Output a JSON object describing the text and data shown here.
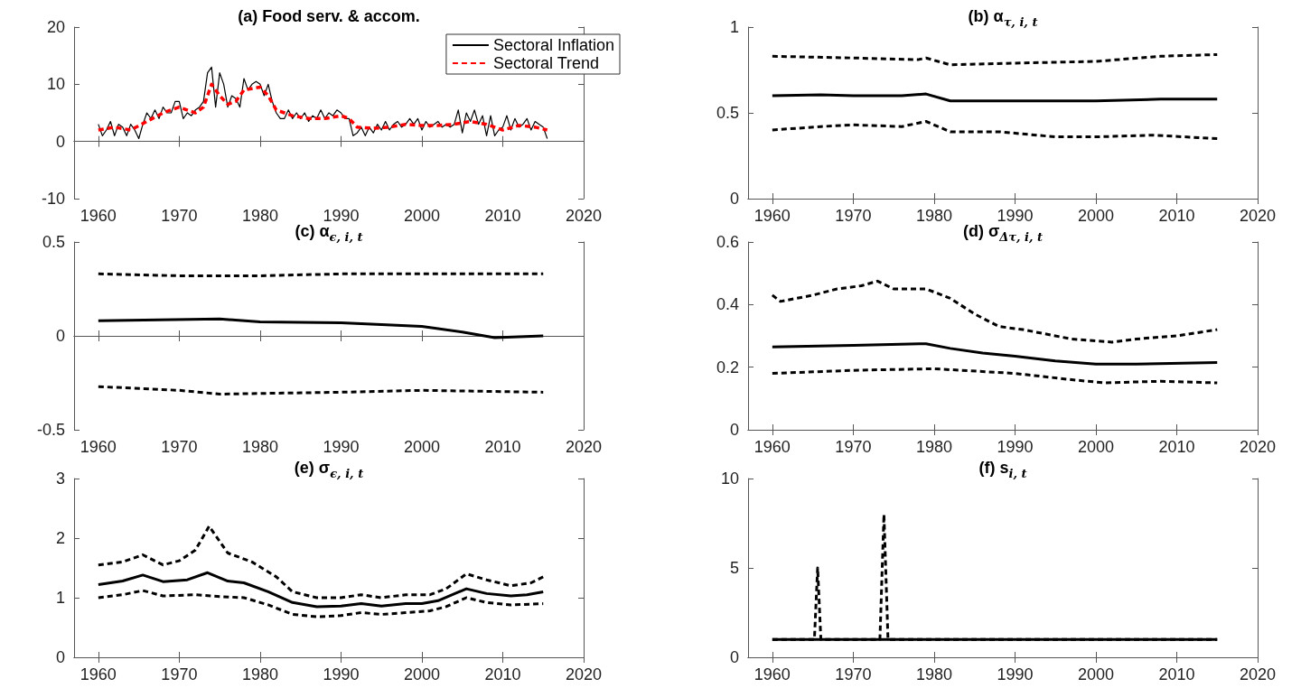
{
  "chart_data": [
    {
      "type": "line",
      "title": "(a) Food serv. & accom.",
      "xlim": [
        1957,
        2020
      ],
      "xticks": [
        1960,
        1970,
        1980,
        1990,
        2000,
        2010,
        2020
      ],
      "ylim": [
        -10,
        20
      ],
      "yticks": [
        -10,
        0,
        10,
        20
      ],
      "legend": "top right",
      "series": [
        {
          "name": "Sectoral Inflation",
          "color": "#000000",
          "line_style": "solid",
          "x": [
            1960,
            1960.5,
            1961,
            1961.5,
            1962,
            1962.5,
            1963,
            1963.5,
            1964,
            1964.5,
            1965,
            1965.5,
            1966,
            1966.5,
            1967,
            1967.5,
            1968,
            1968.5,
            1969,
            1969.5,
            1970,
            1970.5,
            1971,
            1971.5,
            1972,
            1972.5,
            1973,
            1973.5,
            1974,
            1974.5,
            1975,
            1975.5,
            1976,
            1976.5,
            1977,
            1977.5,
            1978,
            1978.5,
            1979,
            1979.5,
            1980,
            1980.5,
            1981,
            1981.5,
            1982,
            1982.5,
            1983,
            1983.5,
            1984,
            1984.5,
            1985,
            1985.5,
            1986,
            1986.5,
            1987,
            1987.5,
            1988,
            1988.5,
            1989,
            1989.5,
            1990,
            1990.5,
            1991,
            1991.5,
            1992,
            1992.5,
            1993,
            1993.5,
            1994,
            1994.5,
            1995,
            1995.5,
            1996,
            1996.5,
            1997,
            1997.5,
            1998,
            1998.5,
            1999,
            1999.5,
            2000,
            2000.5,
            2001,
            2001.5,
            2002,
            2002.5,
            2003,
            2003.5,
            2004,
            2004.5,
            2005,
            2005.5,
            2006,
            2006.5,
            2007,
            2007.5,
            2008,
            2008.5,
            2009,
            2009.5,
            2010,
            2010.5,
            2011,
            2011.5,
            2012,
            2012.5,
            2013,
            2013.5,
            2014,
            2014.5,
            2015,
            2015.5
          ],
          "values": [
            3,
            1,
            2,
            3.5,
            1,
            3,
            2.5,
            1,
            3,
            2,
            0.5,
            3,
            5,
            4,
            5.5,
            4,
            6,
            5,
            5,
            7,
            7,
            4,
            5,
            4.5,
            5.5,
            6,
            7,
            12,
            13,
            6,
            12,
            10,
            6,
            8,
            7.5,
            6,
            11,
            9,
            10,
            10.5,
            10,
            8,
            10,
            7,
            5,
            4,
            4,
            5.5,
            4,
            5,
            4,
            5,
            3.5,
            4.5,
            4,
            5.5,
            4,
            5,
            4.5,
            5.5,
            5,
            4,
            4,
            1,
            1.5,
            2.5,
            1,
            2.5,
            1.5,
            3,
            2,
            3.5,
            2,
            3,
            3.5,
            2.5,
            3,
            4,
            3,
            4,
            2,
            3.5,
            2.5,
            3,
            3.5,
            2.5,
            3,
            2.5,
            3,
            5.5,
            1.5,
            5,
            3.5,
            5.5,
            3,
            4.5,
            1,
            4.5,
            1,
            2,
            2.5,
            4.5,
            2,
            4,
            2.5,
            3,
            4,
            2,
            3.5,
            3,
            2.5,
            0.5
          ]
        },
        {
          "name": "Sectoral Trend",
          "color": "#ff0000",
          "line_style": "dashed",
          "x": [
            1960,
            1962,
            1964,
            1966,
            1968,
            1970,
            1972,
            1973,
            1974,
            1975,
            1976,
            1977,
            1978,
            1980,
            1981,
            1982,
            1984,
            1986,
            1988,
            1990,
            1991,
            1992,
            1994,
            1996,
            1998,
            2000,
            2002,
            2004,
            2006,
            2008,
            2010,
            2012,
            2014,
            2015.5
          ],
          "values": [
            2,
            2.5,
            2,
            3.5,
            5,
            6,
            5,
            6,
            10,
            8,
            6.5,
            7,
            9,
            9.5,
            8,
            5.5,
            4.5,
            4,
            4,
            4.5,
            4,
            2.5,
            2.3,
            2.5,
            3,
            2.8,
            2.8,
            3,
            3.5,
            3,
            2,
            2.8,
            2.5,
            2
          ]
        }
      ]
    },
    {
      "type": "line",
      "title": "(b) α$_{τ, i, t}$",
      "xlim": [
        1957,
        2020
      ],
      "xticks": [
        1960,
        1970,
        1980,
        1990,
        2000,
        2010,
        2020
      ],
      "ylim": [
        0,
        1
      ],
      "yticks": [
        0,
        0.5,
        1
      ],
      "series": [
        {
          "color": "#000000",
          "line_style": "solid",
          "x": [
            1960,
            1966,
            1970,
            1976,
            1979,
            1982,
            1990,
            2000,
            2008,
            2015
          ],
          "values": [
            0.6,
            0.605,
            0.6,
            0.6,
            0.61,
            0.57,
            0.57,
            0.57,
            0.58,
            0.58
          ]
        },
        {
          "color": "#000000",
          "line_style": "dashed",
          "x": [
            1960,
            1970,
            1978,
            1979,
            1982,
            1990,
            2000,
            2008,
            2015
          ],
          "values": [
            0.83,
            0.82,
            0.81,
            0.82,
            0.78,
            0.79,
            0.8,
            0.83,
            0.84
          ]
        },
        {
          "color": "#000000",
          "line_style": "dashed",
          "x": [
            1960,
            1966,
            1970,
            1976,
            1979,
            1982,
            1988,
            1995,
            2000,
            2007,
            2015
          ],
          "values": [
            0.4,
            0.42,
            0.43,
            0.42,
            0.45,
            0.39,
            0.39,
            0.36,
            0.36,
            0.37,
            0.35
          ]
        }
      ]
    },
    {
      "type": "line",
      "title": "(c) α$_{ϵ, i, t}$",
      "xlim": [
        1957,
        2020
      ],
      "xticks": [
        1960,
        1970,
        1980,
        1990,
        2000,
        2010,
        2020
      ],
      "ylim": [
        -0.5,
        0.5
      ],
      "yticks": [
        -0.5,
        0,
        0.5
      ],
      "series": [
        {
          "color": "#000000",
          "line_style": "solid",
          "x": [
            1960,
            1975,
            1980,
            1990,
            2000,
            2005,
            2009,
            2015
          ],
          "values": [
            0.08,
            0.09,
            0.075,
            0.07,
            0.05,
            0.02,
            -0.01,
            0
          ]
        },
        {
          "color": "#000000",
          "line_style": "dashed",
          "x": [
            1960,
            1970,
            1980,
            1990,
            2015
          ],
          "values": [
            0.33,
            0.32,
            0.32,
            0.33,
            0.33
          ]
        },
        {
          "color": "#000000",
          "line_style": "dashed",
          "x": [
            1960,
            1970,
            1975,
            1990,
            2000,
            2015
          ],
          "values": [
            -0.27,
            -0.29,
            -0.31,
            -0.3,
            -0.29,
            -0.3
          ]
        }
      ]
    },
    {
      "type": "line",
      "title": "(d) σ$_{Δτ, i, t}$",
      "xlim": [
        1957,
        2020
      ],
      "xticks": [
        1960,
        1970,
        1980,
        1990,
        2000,
        2010,
        2020
      ],
      "ylim": [
        0,
        0.6
      ],
      "yticks": [
        0,
        0.2,
        0.4,
        0.6
      ],
      "series": [
        {
          "color": "#000000",
          "line_style": "solid",
          "x": [
            1960,
            1970,
            1979,
            1982,
            1986,
            1990,
            1995,
            2000,
            2005,
            2015
          ],
          "values": [
            0.265,
            0.27,
            0.275,
            0.26,
            0.245,
            0.235,
            0.22,
            0.21,
            0.21,
            0.215
          ]
        },
        {
          "color": "#000000",
          "line_style": "dashed",
          "x": [
            1960,
            1961,
            1965,
            1968,
            1971,
            1973,
            1975,
            1979,
            1982,
            1985,
            1988,
            1991,
            1997,
            2002,
            2005,
            2010,
            2015
          ],
          "values": [
            0.43,
            0.41,
            0.43,
            0.45,
            0.46,
            0.475,
            0.45,
            0.45,
            0.42,
            0.37,
            0.33,
            0.32,
            0.29,
            0.28,
            0.29,
            0.3,
            0.32
          ]
        },
        {
          "color": "#000000",
          "line_style": "dashed",
          "x": [
            1960,
            1970,
            1980,
            1990,
            1997,
            2001,
            2008,
            2015
          ],
          "values": [
            0.18,
            0.19,
            0.195,
            0.18,
            0.16,
            0.15,
            0.155,
            0.15
          ]
        }
      ]
    },
    {
      "type": "line",
      "title": "(e) σ$_{ϵ, i, t}$",
      "xlim": [
        1957,
        2020
      ],
      "xticks": [
        1960,
        1970,
        1980,
        1990,
        2000,
        2010,
        2020
      ],
      "ylim": [
        0,
        3
      ],
      "yticks": [
        0,
        1,
        2,
        3
      ],
      "series": [
        {
          "color": "#000000",
          "line_style": "solid",
          "x": [
            1960,
            1963,
            1965.5,
            1968,
            1971,
            1973.5,
            1976,
            1978,
            1981,
            1984,
            1987,
            1990,
            1992.5,
            1995,
            1998,
            2000,
            2002,
            2005.5,
            2008,
            2011,
            2013,
            2015
          ],
          "values": [
            1.22,
            1.28,
            1.38,
            1.27,
            1.3,
            1.42,
            1.28,
            1.25,
            1.1,
            0.92,
            0.85,
            0.86,
            0.9,
            0.86,
            0.9,
            0.9,
            0.95,
            1.15,
            1.07,
            1.03,
            1.05,
            1.1
          ]
        },
        {
          "color": "#000000",
          "line_style": "dashed",
          "x": [
            1960,
            1963,
            1965.5,
            1968,
            1970,
            1972,
            1973.7,
            1976,
            1979,
            1982,
            1984,
            1987,
            1990,
            1992.5,
            1995,
            1998,
            2001,
            2003,
            2005.5,
            2008,
            2011,
            2013.5,
            2015
          ],
          "values": [
            1.55,
            1.6,
            1.72,
            1.55,
            1.62,
            1.8,
            2.2,
            1.75,
            1.6,
            1.35,
            1.1,
            1,
            1,
            1.05,
            1,
            1.05,
            1.05,
            1.15,
            1.4,
            1.3,
            1.2,
            1.25,
            1.35
          ]
        },
        {
          "color": "#000000",
          "line_style": "dashed",
          "x": [
            1960,
            1963,
            1965.5,
            1968,
            1972,
            1975,
            1978,
            1981,
            1984,
            1987,
            1990,
            1992.5,
            1995,
            1998,
            2001,
            2003,
            2005.5,
            2008,
            2011,
            2015
          ],
          "values": [
            1,
            1.05,
            1.12,
            1.03,
            1.05,
            1.02,
            1,
            0.88,
            0.72,
            0.68,
            0.7,
            0.75,
            0.72,
            0.75,
            0.78,
            0.85,
            1,
            0.92,
            0.88,
            0.9
          ]
        }
      ]
    },
    {
      "type": "line",
      "title": "(f) s$_{i, t}$",
      "xlim": [
        1957,
        2020
      ],
      "xticks": [
        1960,
        1970,
        1980,
        1990,
        2000,
        2010,
        2020
      ],
      "ylim": [
        0,
        10
      ],
      "yticks": [
        0,
        5,
        10
      ],
      "series": [
        {
          "color": "#000000",
          "line_style": "dashed",
          "x": [
            1960,
            1965.2,
            1965.6,
            1966,
            1973.3,
            1973.8,
            1974.3,
            2015
          ],
          "values": [
            1,
            1,
            5,
            1,
            1,
            8,
            1,
            1
          ]
        },
        {
          "color": "#000000",
          "line_style": "solid",
          "x": [
            1960,
            2015
          ],
          "values": [
            1,
            1
          ]
        }
      ]
    }
  ]
}
